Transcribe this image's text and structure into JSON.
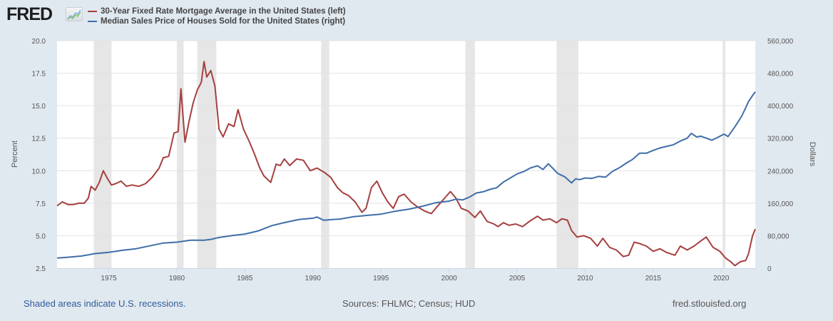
{
  "header": {
    "logo_text": "FRED",
    "logo_icon": "line-chart-icon"
  },
  "legend": [
    {
      "label": "30-Year Fixed Rate Mortgage Average in the United States (left)",
      "color": "#a63f3f"
    },
    {
      "label": "Median Sales Price of Houses Sold for the United States (right)",
      "color": "#3f6ea8"
    }
  ],
  "footer": {
    "recession_note": "Shaded areas indicate U.S. recessions.",
    "sources": "Sources: FHLMC; Census; HUD",
    "url": "fred.stlouisfed.org"
  },
  "chart_data": {
    "type": "line",
    "title": "",
    "xlabel": "",
    "ylabel_left": "Percent",
    "ylabel_right": "Dollars",
    "xlim": [
      1971.2,
      2022.5
    ],
    "ylim_left": [
      2.5,
      20.0
    ],
    "ylim_right": [
      0,
      560000
    ],
    "x_ticks": [
      "1975",
      "1980",
      "1985",
      "1990",
      "1995",
      "2000",
      "2005",
      "2010",
      "2015",
      "2020"
    ],
    "y_ticks_left": [
      "2.5",
      "5.0",
      "7.5",
      "10.0",
      "12.5",
      "15.0",
      "17.5",
      "20.0"
    ],
    "y_ticks_right": [
      "0",
      "80,000",
      "160,000",
      "240,000",
      "320,000",
      "400,000",
      "480,000",
      "560,000"
    ],
    "grid": true,
    "legend_position": "top-left",
    "recessions": [
      [
        1973.9,
        1975.2
      ],
      [
        1980.0,
        1980.5
      ],
      [
        1981.5,
        1982.9
      ],
      [
        1990.6,
        1991.2
      ],
      [
        2001.2,
        2001.9
      ],
      [
        2007.9,
        2009.5
      ],
      [
        2020.1,
        2020.3
      ]
    ],
    "series": [
      {
        "name": "30-Year Fixed Rate Mortgage Average in the United States (left)",
        "axis": "left",
        "color": "#a63f3f",
        "x": [
          1971.2,
          1971.6,
          1972.0,
          1972.4,
          1972.8,
          1973.2,
          1973.5,
          1973.7,
          1974.0,
          1974.3,
          1974.6,
          1974.9,
          1975.2,
          1975.5,
          1975.9,
          1976.3,
          1976.7,
          1977.2,
          1977.7,
          1978.2,
          1978.7,
          1979.0,
          1979.4,
          1979.8,
          1980.1,
          1980.3,
          1980.6,
          1980.9,
          1981.2,
          1981.5,
          1981.8,
          1982.0,
          1982.2,
          1982.5,
          1982.8,
          1983.1,
          1983.4,
          1983.8,
          1984.2,
          1984.5,
          1984.9,
          1985.3,
          1985.7,
          1986.1,
          1986.4,
          1986.9,
          1987.3,
          1987.6,
          1987.9,
          1988.3,
          1988.8,
          1989.3,
          1989.8,
          1990.3,
          1990.8,
          1991.3,
          1991.8,
          1992.2,
          1992.6,
          1993.1,
          1993.6,
          1993.9,
          1994.3,
          1994.7,
          1995.1,
          1995.5,
          1995.9,
          1996.3,
          1996.7,
          1997.2,
          1997.7,
          1998.2,
          1998.7,
          1999.1,
          1999.6,
          2000.1,
          2000.5,
          2000.9,
          2001.4,
          2001.9,
          2002.3,
          2002.8,
          2003.3,
          2003.6,
          2004.0,
          2004.4,
          2004.9,
          2005.4,
          2005.9,
          2006.5,
          2006.9,
          2007.4,
          2007.9,
          2008.3,
          2008.7,
          2009.0,
          2009.4,
          2009.9,
          2010.4,
          2010.9,
          2011.3,
          2011.8,
          2012.3,
          2012.8,
          2013.2,
          2013.6,
          2014.0,
          2014.5,
          2015.0,
          2015.5,
          2016.0,
          2016.6,
          2017.0,
          2017.5,
          2018.0,
          2018.5,
          2018.9,
          2019.4,
          2019.9,
          2020.3,
          2020.7,
          2021.0,
          2021.4,
          2021.8,
          2022.0,
          2022.3,
          2022.5
        ],
        "values": [
          7.3,
          7.6,
          7.4,
          7.4,
          7.5,
          7.5,
          7.9,
          8.8,
          8.5,
          9.1,
          10.0,
          9.4,
          8.9,
          9.0,
          9.2,
          8.8,
          8.9,
          8.8,
          9.0,
          9.5,
          10.2,
          11.0,
          11.1,
          12.9,
          13.0,
          16.3,
          12.2,
          13.8,
          15.2,
          16.2,
          16.8,
          18.4,
          17.2,
          17.7,
          16.5,
          13.2,
          12.6,
          13.6,
          13.4,
          14.7,
          13.2,
          12.3,
          11.3,
          10.2,
          9.6,
          9.1,
          10.5,
          10.4,
          10.9,
          10.4,
          10.9,
          10.8,
          10.0,
          10.2,
          9.9,
          9.5,
          8.7,
          8.3,
          8.1,
          7.6,
          6.8,
          7.1,
          8.7,
          9.2,
          8.3,
          7.6,
          7.1,
          8.0,
          8.2,
          7.6,
          7.2,
          6.9,
          6.7,
          7.2,
          7.8,
          8.4,
          7.9,
          7.1,
          6.9,
          6.4,
          6.9,
          6.1,
          5.9,
          5.7,
          6.0,
          5.8,
          5.9,
          5.7,
          6.1,
          6.5,
          6.2,
          6.3,
          6.0,
          6.3,
          6.2,
          5.4,
          4.9,
          5.0,
          4.8,
          4.2,
          4.8,
          4.1,
          3.9,
          3.4,
          3.5,
          4.5,
          4.4,
          4.2,
          3.8,
          4.0,
          3.7,
          3.5,
          4.2,
          3.9,
          4.2,
          4.6,
          4.9,
          4.1,
          3.8,
          3.3,
          3.0,
          2.7,
          3.0,
          3.1,
          3.6,
          5.0,
          5.5
        ]
      },
      {
        "name": "Median Sales Price of Houses Sold for the United States (right)",
        "axis": "right",
        "color": "#3f6ea8",
        "x": [
          1971.2,
          1972.0,
          1973.0,
          1974.0,
          1975.0,
          1976.0,
          1977.0,
          1978.0,
          1979.0,
          1980.0,
          1981.0,
          1982.0,
          1982.5,
          1983.0,
          1984.0,
          1985.0,
          1986.0,
          1987.0,
          1988.0,
          1989.0,
          1990.0,
          1990.3,
          1990.8,
          1991.5,
          1992.0,
          1993.0,
          1994.0,
          1995.0,
          1996.0,
          1997.0,
          1998.0,
          1999.0,
          2000.0,
          2000.5,
          2001.0,
          2001.5,
          2002.0,
          2002.5,
          2003.0,
          2003.5,
          2004.0,
          2004.5,
          2005.0,
          2005.5,
          2006.0,
          2006.5,
          2006.9,
          2007.3,
          2008.0,
          2008.5,
          2009.0,
          2009.3,
          2009.6,
          2010.0,
          2010.5,
          2011.0,
          2011.5,
          2012.0,
          2012.5,
          2013.0,
          2013.5,
          2014.0,
          2014.5,
          2015.0,
          2015.5,
          2016.0,
          2016.5,
          2017.0,
          2017.5,
          2017.8,
          2018.2,
          2018.5,
          2018.9,
          2019.3,
          2019.8,
          2020.2,
          2020.5,
          2021.0,
          2021.5,
          2021.8,
          2022.0,
          2022.3,
          2022.5
        ],
        "values": [
          25000,
          27000,
          30000,
          36000,
          39000,
          44000,
          48000,
          55000,
          62000,
          64000,
          69000,
          69000,
          71000,
          75000,
          80000,
          84000,
          92000,
          105000,
          113000,
          120000,
          123000,
          126000,
          118000,
          120000,
          121000,
          127000,
          130000,
          133000,
          140000,
          145000,
          152000,
          161000,
          165000,
          170000,
          168000,
          175000,
          185000,
          188000,
          194000,
          198000,
          212000,
          222000,
          232000,
          238000,
          247000,
          252000,
          243000,
          257000,
          233000,
          225000,
          210000,
          220000,
          218000,
          222000,
          221000,
          226000,
          224000,
          238000,
          247000,
          258000,
          268000,
          283000,
          283000,
          290000,
          296000,
          300000,
          304000,
          313000,
          320000,
          332000,
          323000,
          325000,
          320000,
          315000,
          323000,
          330000,
          324000,
          348000,
          374000,
          395000,
          410000,
          425000,
          434000
        ]
      }
    ]
  }
}
